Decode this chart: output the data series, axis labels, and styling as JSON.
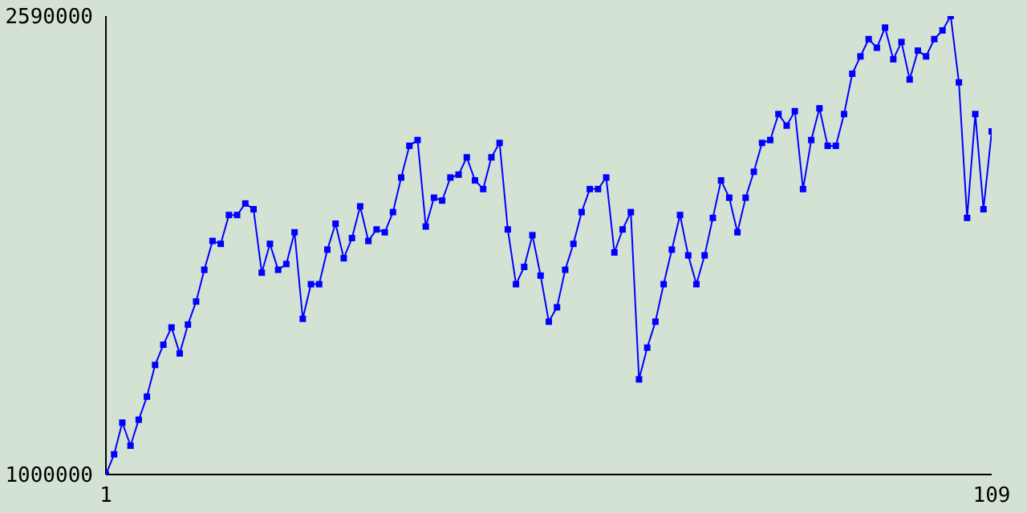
{
  "chart_data": {
    "type": "line",
    "x": [
      1,
      2,
      3,
      4,
      5,
      6,
      7,
      8,
      9,
      10,
      11,
      12,
      13,
      14,
      15,
      16,
      17,
      18,
      19,
      20,
      21,
      22,
      23,
      24,
      25,
      26,
      27,
      28,
      29,
      30,
      31,
      32,
      33,
      34,
      35,
      36,
      37,
      38,
      39,
      40,
      41,
      42,
      43,
      44,
      45,
      46,
      47,
      48,
      49,
      50,
      51,
      52,
      53,
      54,
      55,
      56,
      57,
      58,
      59,
      60,
      61,
      62,
      63,
      64,
      65,
      66,
      67,
      68,
      69,
      70,
      71,
      72,
      73,
      74,
      75,
      76,
      77,
      78,
      79,
      80,
      81,
      82,
      83,
      84,
      85,
      86,
      87,
      88,
      89,
      90,
      91,
      92,
      93,
      94,
      95,
      96,
      97,
      98,
      99,
      100,
      101,
      102,
      103,
      104,
      105,
      106,
      107,
      108,
      109
    ],
    "series": [
      {
        "color": "#0000ff",
        "values": [
          1000000,
          1070000,
          1180000,
          1100000,
          1190000,
          1270000,
          1380000,
          1450000,
          1510000,
          1420000,
          1520000,
          1600000,
          1710000,
          1810000,
          1800000,
          1900000,
          1900000,
          1940000,
          1920000,
          1700000,
          1800000,
          1710000,
          1730000,
          1840000,
          1540000,
          1660000,
          1660000,
          1780000,
          1870000,
          1750000,
          1820000,
          1930000,
          1810000,
          1850000,
          1840000,
          1910000,
          2030000,
          2140000,
          2160000,
          1860000,
          1960000,
          1950000,
          2030000,
          2040000,
          2100000,
          2020000,
          1990000,
          2100000,
          2150000,
          1850000,
          1660000,
          1720000,
          1830000,
          1690000,
          1530000,
          1580000,
          1710000,
          1800000,
          1910000,
          1990000,
          1990000,
          2030000,
          1770000,
          1850000,
          1910000,
          1330000,
          1440000,
          1530000,
          1660000,
          1780000,
          1900000,
          1760000,
          1660000,
          1760000,
          1890000,
          2020000,
          1960000,
          1840000,
          1960000,
          2050000,
          2150000,
          2160000,
          2250000,
          2210000,
          2260000,
          1990000,
          2160000,
          2270000,
          2140000,
          2140000,
          2250000,
          2390000,
          2450000,
          2510000,
          2480000,
          2550000,
          2440000,
          2500000,
          2370000,
          2470000,
          2450000,
          2510000,
          2540000,
          2590000,
          2360000,
          1890000,
          2250000,
          1920000,
          2190000
        ]
      }
    ],
    "xlim": [
      1,
      109
    ],
    "xticks": [
      1,
      109
    ],
    "ylim": [
      1000000,
      2590000
    ],
    "yticks": [
      1000000,
      2590000
    ],
    "marker": "square",
    "line_style": "solid",
    "grid": false
  }
}
